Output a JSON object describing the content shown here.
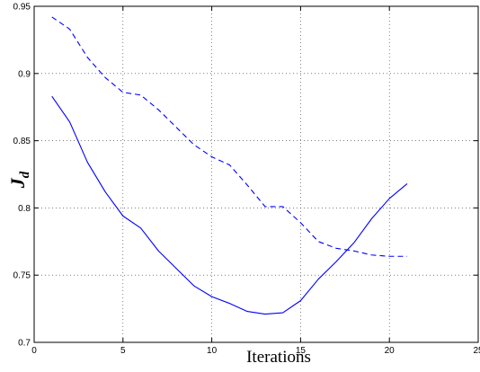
{
  "chart_data": {
    "type": "line",
    "xlabel": "Iterations",
    "ylabel": {
      "main": "J",
      "sub": "d"
    },
    "xlim": [
      0,
      25
    ],
    "ylim": [
      0.7,
      0.95
    ],
    "xticks": [
      0,
      5,
      10,
      15,
      20,
      25
    ],
    "yticks": [
      0.7,
      0.75,
      0.8,
      0.85,
      0.9,
      0.95
    ],
    "xtick_labels": [
      "0",
      "5",
      "10",
      "15",
      "20",
      "25"
    ],
    "ytick_labels": [
      "0.7",
      "0.75",
      "0.8",
      "0.85",
      "0.9",
      "0.95"
    ],
    "grid": true,
    "series": [
      {
        "style": "solid",
        "color": "#0000ff",
        "x": [
          1,
          2,
          3,
          4,
          5,
          6,
          7,
          8,
          9,
          10,
          11,
          12,
          13,
          14,
          15,
          16,
          17,
          18,
          19,
          20,
          21
        ],
        "y": [
          0.883,
          0.864,
          0.834,
          0.812,
          0.794,
          0.785,
          0.768,
          0.755,
          0.742,
          0.734,
          0.729,
          0.723,
          0.721,
          0.722,
          0.731,
          0.747,
          0.76,
          0.774,
          0.792,
          0.807,
          0.818
        ]
      },
      {
        "style": "dashed",
        "color": "#0000ff",
        "x": [
          1,
          2,
          3,
          4,
          5,
          6,
          7,
          8,
          9,
          10,
          11,
          12,
          13,
          14,
          15,
          16,
          17,
          18,
          19,
          20,
          21
        ],
        "y": [
          0.942,
          0.933,
          0.912,
          0.897,
          0.886,
          0.884,
          0.873,
          0.86,
          0.847,
          0.838,
          0.832,
          0.817,
          0.801,
          0.801,
          0.789,
          0.775,
          0.77,
          0.768,
          0.765,
          0.764,
          0.764
        ]
      }
    ]
  }
}
